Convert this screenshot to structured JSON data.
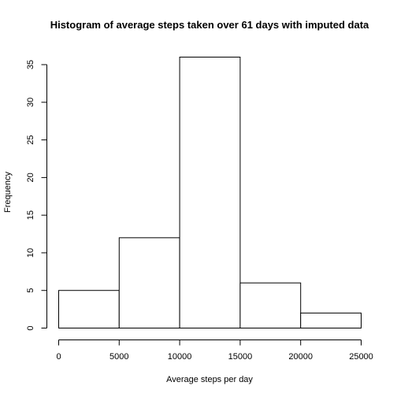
{
  "chart_data": {
    "type": "bar",
    "title": "Histogram of average steps taken over 61 days with imputed data",
    "xlabel": "Average steps per day",
    "ylabel": "Frequency",
    "bins": [
      {
        "start": 0,
        "end": 5000,
        "value": 5
      },
      {
        "start": 5000,
        "end": 10000,
        "value": 12
      },
      {
        "start": 10000,
        "end": 15000,
        "value": 36
      },
      {
        "start": 15000,
        "end": 20000,
        "value": 6
      },
      {
        "start": 20000,
        "end": 25000,
        "value": 2
      }
    ],
    "x_ticks": [
      "0",
      "5000",
      "10000",
      "15000",
      "20000",
      "25000"
    ],
    "y_ticks": [
      "0",
      "5",
      "10",
      "15",
      "20",
      "25",
      "30",
      "35"
    ],
    "xlim": [
      0,
      25000
    ],
    "ylim": [
      0,
      36
    ],
    "grid": false,
    "legend": "none",
    "colors": {
      "bar_fill": "#ffffff",
      "bar_stroke": "#000000"
    }
  }
}
